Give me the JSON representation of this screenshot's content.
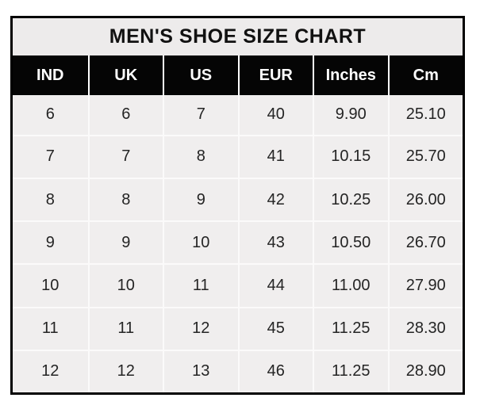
{
  "title": "MEN'S SHOE SIZE CHART",
  "colors": {
    "page_bg": "#ffffff",
    "outer_border": "#000000",
    "title_band_bg": "#edebeb",
    "header_bg": "#050505",
    "header_text": "#ffffff",
    "cell_bg": "#f0eeee",
    "cell_text": "#242424",
    "gridline": "#fbfafa"
  },
  "table": {
    "headers": [
      "IND",
      "UK",
      "US",
      "EUR",
      "Inches",
      "Cm"
    ],
    "rows": [
      [
        "6",
        "6",
        "7",
        "40",
        "9.90",
        "25.10"
      ],
      [
        "7",
        "7",
        "8",
        "41",
        "10.15",
        "25.70"
      ],
      [
        "8",
        "8",
        "9",
        "42",
        "10.25",
        "26.00"
      ],
      [
        "9",
        "9",
        "10",
        "43",
        "10.50",
        "26.70"
      ],
      [
        "10",
        "10",
        "11",
        "44",
        "11.00",
        "27.90"
      ],
      [
        "11",
        "11",
        "12",
        "45",
        "11.25",
        "28.30"
      ],
      [
        "12",
        "12",
        "13",
        "46",
        "11.25",
        "28.90"
      ]
    ]
  },
  "chart_data": {
    "type": "table",
    "title": "MEN'S SHOE SIZE CHART",
    "columns": [
      "IND",
      "UK",
      "US",
      "EUR",
      "Inches",
      "Cm"
    ],
    "rows": [
      [
        6,
        6,
        7,
        40,
        9.9,
        25.1
      ],
      [
        7,
        7,
        8,
        41,
        10.15,
        25.7
      ],
      [
        8,
        8,
        9,
        42,
        10.25,
        26.0
      ],
      [
        9,
        9,
        10,
        43,
        10.5,
        26.7
      ],
      [
        10,
        10,
        11,
        44,
        11.0,
        27.9
      ],
      [
        11,
        11,
        12,
        45,
        11.25,
        28.3
      ],
      [
        12,
        12,
        13,
        46,
        11.25,
        28.9
      ]
    ]
  }
}
